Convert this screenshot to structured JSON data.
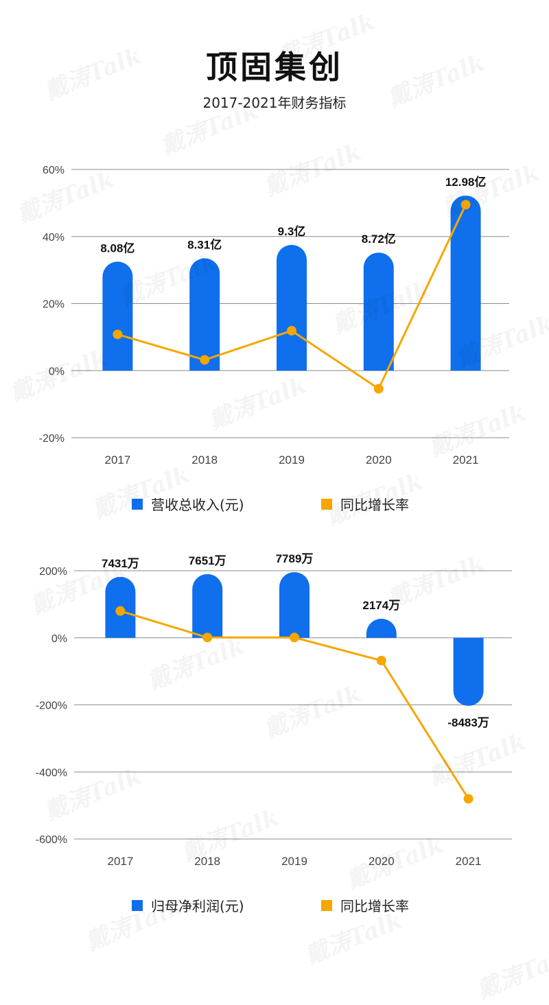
{
  "header": {
    "title": "顶固集创",
    "subtitle": "2017-2021年财务指标"
  },
  "watermark_text": "戴涛Talk",
  "colors": {
    "bar": "#0f6fec",
    "line": "#f5a700",
    "grid": "#8c8c8c"
  },
  "chart_data": [
    {
      "type": "bar+line",
      "categories": [
        "2017",
        "2018",
        "2019",
        "2020",
        "2021"
      ],
      "bar_series": {
        "name": "营收总收入(元)",
        "values": [
          8.08,
          8.31,
          9.3,
          8.72,
          12.98
        ],
        "labels": [
          "8.08亿",
          "8.31亿",
          "9.3亿",
          "8.72亿",
          "12.98亿"
        ],
        "note": "bar heights relative to secondary revenue scale (max ≈ 13亿 at ~53%)",
        "axis_pct_equiv": [
          32.5,
          33.5,
          37.5,
          35.2,
          52.2
        ]
      },
      "line_series": {
        "name": "同比增长率",
        "values": [
          10.8,
          3.2,
          11.9,
          -5.4,
          49.5
        ]
      },
      "y_axis": {
        "min": -20,
        "max": 60,
        "ticks": [
          60,
          40,
          20,
          0,
          -20
        ],
        "tick_labels": [
          "60%",
          "40%",
          "20%",
          "0%",
          "-20%"
        ]
      },
      "legend": [
        "营收总收入(元)",
        "同比增长率"
      ]
    },
    {
      "type": "bar+line",
      "categories": [
        "2017",
        "2018",
        "2019",
        "2020",
        "2021"
      ],
      "bar_series": {
        "name": "归母净利润(元)",
        "values": [
          7431,
          7651,
          7789,
          2174,
          -8483
        ],
        "labels": [
          "7431万",
          "7651万",
          "7789万",
          "2174万",
          "-8483万"
        ],
        "axis_pct_equiv": [
          182,
          190,
          196,
          57,
          -203
        ]
      },
      "line_series": {
        "name": "同比增长率",
        "values": [
          80,
          1,
          1,
          -68,
          -480
        ]
      },
      "y_axis": {
        "min": -600,
        "max": 200,
        "ticks": [
          200,
          0,
          -200,
          -400,
          -600
        ],
        "tick_labels": [
          "200%",
          "0%",
          "-200%",
          "-400%",
          "-600%"
        ]
      },
      "legend": [
        "归母净利润(元)",
        "同比增长率"
      ]
    }
  ]
}
